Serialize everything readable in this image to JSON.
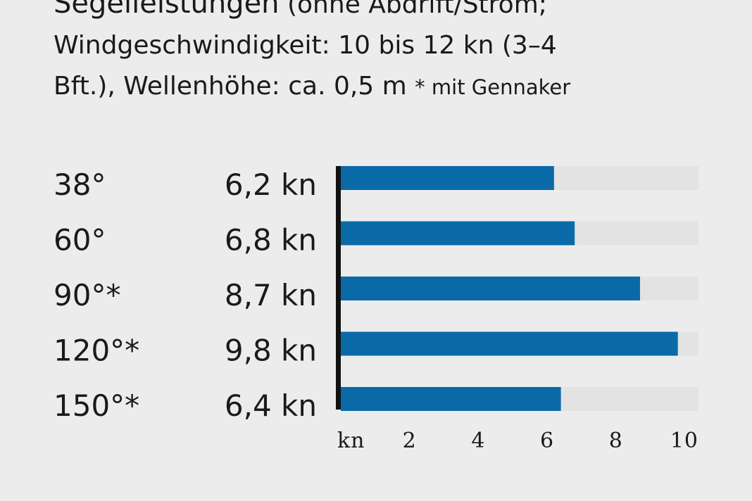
{
  "header": {
    "title": "Segelleistungen",
    "subtitle_part1": "(ohne Abdrift/Strom;",
    "subtitle_line2": "Windgeschwindigkeit: 10 bis 12 kn (3–4",
    "subtitle_line3": "Bft.), Wellenhöhe: ca. 0,5 m",
    "footnote": "* mit Gennaker"
  },
  "chart_data": {
    "type": "bar",
    "orientation": "horizontal",
    "categories": [
      "38°",
      "60°",
      "90°*",
      "120°*",
      "150°*"
    ],
    "values": [
      6.2,
      6.8,
      8.7,
      9.8,
      6.4
    ],
    "value_labels": [
      "6,2 kn",
      "6,8 kn",
      "8,7 kn",
      "9,8 kn",
      "6,4 kn"
    ],
    "unit_label": "kn",
    "xticks": [
      "2",
      "4",
      "6",
      "8",
      "10"
    ],
    "xlim": [
      0,
      10.4
    ],
    "bar_color": "#0a6aa8",
    "track_color": "#e3e3e3",
    "axis_color": "#111111"
  }
}
